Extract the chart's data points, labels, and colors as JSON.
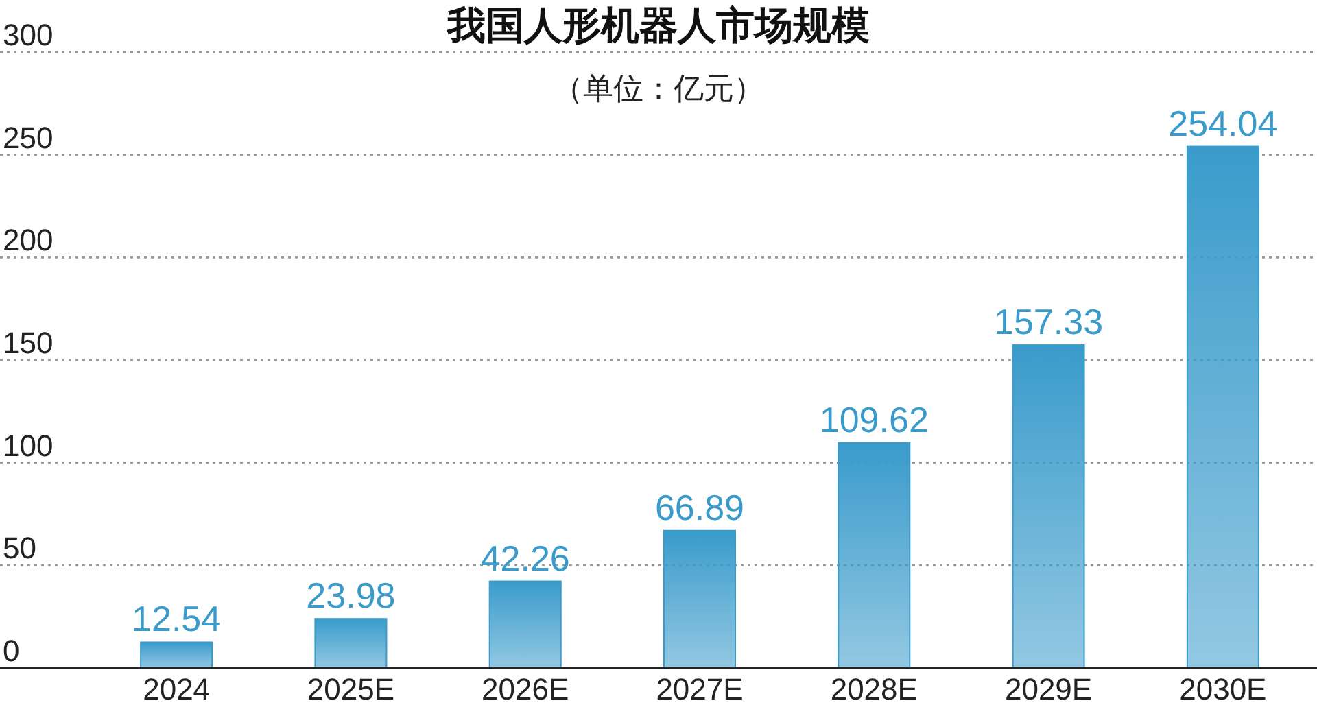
{
  "chart_data": {
    "type": "bar",
    "title": "我国人形机器人市场规模",
    "subtitle": "（单位：亿元）",
    "categories": [
      "2024",
      "2025E",
      "2026E",
      "2027E",
      "2028E",
      "2029E",
      "2030E"
    ],
    "values": [
      12.54,
      23.98,
      42.26,
      66.89,
      109.62,
      157.33,
      254.04
    ],
    "color": "#3a9bcb",
    "ylim": [
      0,
      300
    ],
    "yticks": [
      0,
      50,
      100,
      150,
      200,
      250,
      300
    ],
    "grid": "y",
    "data_labels": true
  }
}
